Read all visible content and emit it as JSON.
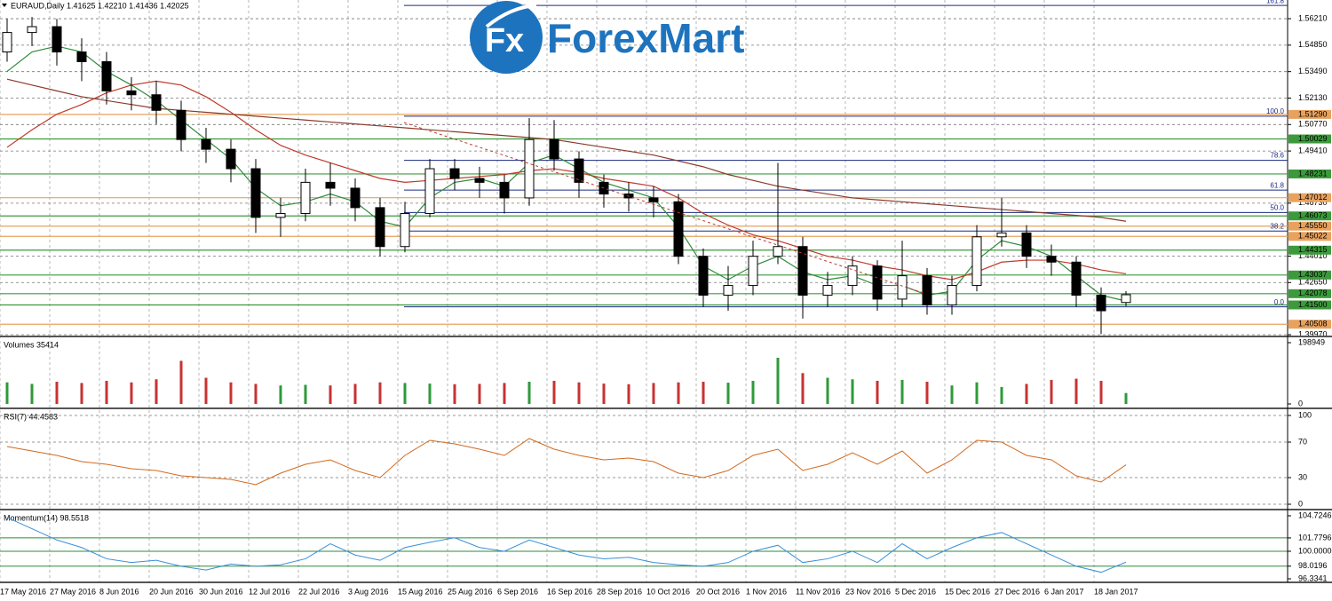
{
  "chart_data": [
    {
      "type": "candlestick",
      "title": "EURAUD,Daily 1.41625 1.42210 1.41436 1.42025",
      "categories": [
        "17 May 2016",
        null,
        "27 May 2016",
        null,
        "8 Jun 2016",
        null,
        "20 Jun 2016",
        null,
        "30 Jun 2016",
        null,
        "12 Jul 2016",
        null,
        "22 Jul 2016",
        null,
        "3 Aug 2016",
        null,
        "15 Aug 2016",
        null,
        "25 Aug 2016",
        null,
        "6 Sep 2016",
        null,
        "16 Sep 2016",
        null,
        "28 Sep 2016",
        null,
        "10 Oct 2016",
        null,
        "20 Oct 2016",
        null,
        "1 Nov 2016",
        null,
        "11 Nov 2016",
        null,
        "23 Nov 2016",
        null,
        "5 Dec 2016",
        null,
        "15 Dec 2016",
        null,
        "27 Dec 2016",
        null,
        "6 Jan 2017",
        null,
        "18 Jan 2017",
        null
      ],
      "open": [
        1.545,
        1.555,
        1.558,
        1.545,
        1.54,
        1.525,
        1.523,
        1.515,
        1.5,
        1.495,
        1.485,
        1.46,
        1.462,
        1.478,
        1.475,
        1.465,
        1.445,
        1.462,
        1.485,
        1.48,
        1.478,
        1.47,
        1.5,
        1.49,
        1.478,
        1.472,
        1.47,
        1.468,
        1.44,
        1.42,
        1.425,
        1.44,
        1.445,
        1.42,
        1.425,
        1.435,
        1.418,
        1.43,
        1.415,
        1.425,
        1.45,
        1.452,
        1.44,
        1.437,
        1.42,
        1.41625
      ],
      "high": [
        1.562,
        1.563,
        1.562,
        1.552,
        1.545,
        1.532,
        1.53,
        1.52,
        1.506,
        1.5,
        1.49,
        1.47,
        1.485,
        1.488,
        1.48,
        1.47,
        1.468,
        1.49,
        1.49,
        1.486,
        1.482,
        1.511,
        1.51,
        1.494,
        1.482,
        1.478,
        1.476,
        1.472,
        1.444,
        1.435,
        1.448,
        1.488,
        1.45,
        1.432,
        1.44,
        1.438,
        1.448,
        1.434,
        1.43,
        1.456,
        1.47,
        1.456,
        1.446,
        1.44,
        1.424,
        1.4221
      ],
      "low": [
        1.54,
        1.548,
        1.538,
        1.53,
        1.518,
        1.515,
        1.508,
        1.494,
        1.488,
        1.478,
        1.452,
        1.45,
        1.458,
        1.466,
        1.458,
        1.44,
        1.442,
        1.46,
        1.474,
        1.47,
        1.462,
        1.466,
        1.484,
        1.47,
        1.465,
        1.463,
        1.46,
        1.436,
        1.414,
        1.412,
        1.42,
        1.436,
        1.408,
        1.414,
        1.42,
        1.412,
        1.414,
        1.41,
        1.41,
        1.422,
        1.445,
        1.434,
        1.43,
        1.414,
        1.4,
        1.41436
      ],
      "close": [
        1.555,
        1.558,
        1.545,
        1.54,
        1.525,
        1.523,
        1.515,
        1.5,
        1.495,
        1.485,
        1.46,
        1.462,
        1.478,
        1.475,
        1.465,
        1.445,
        1.462,
        1.485,
        1.48,
        1.478,
        1.47,
        1.5,
        1.49,
        1.478,
        1.472,
        1.47,
        1.468,
        1.44,
        1.42,
        1.425,
        1.44,
        1.445,
        1.42,
        1.425,
        1.435,
        1.418,
        1.43,
        1.415,
        1.425,
        1.45,
        1.452,
        1.44,
        1.437,
        1.42,
        1.412,
        1.42025
      ],
      "up_color": "#ffffff",
      "down_color": "#000000",
      "lines": [
        {
          "color": "#2e8b3a",
          "values": [
            1.535,
            1.545,
            1.548,
            1.545,
            1.535,
            1.528,
            1.52,
            1.51,
            1.5,
            1.49,
            1.475,
            1.466,
            1.468,
            1.472,
            1.468,
            1.458,
            1.455,
            1.47,
            1.478,
            1.48,
            1.476,
            1.488,
            1.492,
            1.485,
            1.478,
            1.474,
            1.47,
            1.455,
            1.435,
            1.428,
            1.435,
            1.44,
            1.432,
            1.428,
            1.43,
            1.425,
            1.425,
            1.42,
            1.422,
            1.438,
            1.448,
            1.445,
            1.44,
            1.43,
            1.42,
            1.417
          ]
        },
        {
          "color": "#c0392b",
          "values": [
            1.496,
            1.505,
            1.513,
            1.518,
            1.524,
            1.528,
            1.53,
            1.528,
            1.522,
            1.514,
            1.505,
            1.497,
            1.492,
            1.488,
            1.484,
            1.48,
            1.478,
            1.479,
            1.48,
            1.481,
            1.482,
            1.484,
            1.485,
            1.483,
            1.48,
            1.478,
            1.476,
            1.47,
            1.462,
            1.456,
            1.451,
            1.448,
            1.444,
            1.44,
            1.438,
            1.435,
            1.433,
            1.43,
            1.428,
            1.432,
            1.437,
            1.438,
            1.438,
            1.436,
            1.433,
            1.431
          ]
        },
        {
          "color": "#8b3a2a",
          "values": [
            1.531,
            1.528,
            1.525,
            1.522,
            1.52,
            1.518,
            1.516,
            1.515,
            1.514,
            1.513,
            1.512,
            1.511,
            1.51,
            1.509,
            1.508,
            1.507,
            1.506,
            1.505,
            1.504,
            1.503,
            1.502,
            1.501,
            1.5,
            1.498,
            1.496,
            1.494,
            1.492,
            1.489,
            1.486,
            1.482,
            1.479,
            1.476,
            1.474,
            1.472,
            1.47,
            1.469,
            1.468,
            1.467,
            1.466,
            1.465,
            1.464,
            1.463,
            1.462,
            1.461,
            1.46,
            1.458
          ]
        }
      ],
      "ylim": [
        1.3988,
        1.5717
      ],
      "yticks": [
        {
          "value": 1.5621,
          "label": "1.56210"
        },
        {
          "value": 1.5485,
          "label": "1.54850"
        },
        {
          "value": 1.5349,
          "label": "1.53490"
        },
        {
          "value": 1.5213,
          "label": "1.52130"
        },
        {
          "value": 1.5077,
          "label": "1.50770"
        },
        {
          "value": 1.4941,
          "label": "1.49410"
        },
        {
          "value": 1.4673,
          "label": "1.46730"
        },
        {
          "value": 1.4401,
          "label": "1.44010"
        },
        {
          "value": 1.4265,
          "label": "1.42650"
        },
        {
          "value": 1.3997,
          "label": "1.39970"
        }
      ],
      "grid": true,
      "levels": [
        {
          "value": 1.5129,
          "label": "1.51290",
          "color": "#e8a25e"
        },
        {
          "value": 1.50029,
          "label": "1.50029",
          "color": "#3c9a3c"
        },
        {
          "value": 1.48231,
          "label": "1.48231",
          "color": "#3c9a3c"
        },
        {
          "value": 1.47012,
          "label": "1.47012",
          "color": "#e8a25e"
        },
        {
          "value": 1.46073,
          "label": "1.46073",
          "color": "#3c9a3c"
        },
        {
          "value": 1.4555,
          "label": "1.45550",
          "color": "#e8a25e"
        },
        {
          "value": 1.45022,
          "label": "1.45022",
          "color": "#e8a25e"
        },
        {
          "value": 1.44315,
          "label": "1.44315",
          "color": "#3c9a3c"
        },
        {
          "value": 1.43037,
          "label": "1.43037",
          "color": "#3c9a3c"
        },
        {
          "value": 1.42078,
          "label": "1.42078",
          "color": "#3c9a3c"
        },
        {
          "value": 1.415,
          "label": "1.41500",
          "color": "#3c9a3c"
        },
        {
          "value": 1.40508,
          "label": "1.40508",
          "color": "#e8a25e"
        }
      ],
      "fib": {
        "color": "#1a2a80",
        "levels": [
          {
            "label": "161.8",
            "price": 1.5689
          },
          {
            "label": "100.0",
            "price": 1.512
          },
          {
            "label": "78.6",
            "price": 1.4893
          },
          {
            "label": "61.8",
            "price": 1.474
          },
          {
            "label": "50.0",
            "price": 1.4625
          },
          {
            "label": "38.2",
            "price": 1.453
          },
          {
            "label": "0.0",
            "price": 1.414
          }
        ]
      }
    },
    {
      "type": "bar",
      "title": "Volumes 35414",
      "up_color": "#2e9a3a",
      "down_color": "#c83232",
      "values": [
        70000,
        65000,
        72000,
        68000,
        75000,
        70000,
        80000,
        140000,
        85000,
        70000,
        65000,
        60000,
        62000,
        60000,
        65000,
        70000,
        68000,
        66000,
        64000,
        65000,
        68000,
        72000,
        75000,
        70000,
        66000,
        64000,
        68000,
        70000,
        72000,
        69000,
        75000,
        150000,
        100000,
        85000,
        80000,
        75000,
        78000,
        72000,
        60000,
        70000,
        55000,
        65000,
        78000,
        82000,
        75000,
        35414
      ],
      "ylim": [
        0,
        198949
      ],
      "yticks": [
        0,
        198949
      ]
    },
    {
      "type": "line",
      "title": "RSI(7) 44.4583",
      "color": "#d2691e",
      "values": [
        65,
        60,
        55,
        48,
        45,
        40,
        38,
        32,
        30,
        28,
        22,
        35,
        45,
        50,
        38,
        30,
        55,
        72,
        68,
        62,
        55,
        74,
        62,
        55,
        50,
        52,
        48,
        35,
        30,
        38,
        55,
        62,
        38,
        45,
        58,
        45,
        60,
        35,
        50,
        72,
        70,
        55,
        50,
        32,
        25,
        44.4583
      ],
      "ylim": [
        0,
        100
      ],
      "yticks": [
        0,
        30,
        70,
        100
      ]
    },
    {
      "type": "line",
      "title": "Momentum(14) 98.5518",
      "color": "#3a8fd8",
      "values": [
        104.5,
        103,
        101.5,
        100.5,
        99,
        98.5,
        98.8,
        98,
        97.5,
        98.3,
        98,
        98.2,
        99,
        101,
        99.5,
        98.8,
        100.5,
        101.2,
        101.8,
        100.5,
        100,
        101.5,
        100.5,
        99.5,
        99,
        99.2,
        98.5,
        98.2,
        98,
        98.5,
        100,
        100.8,
        98.5,
        99,
        100,
        98.5,
        101,
        99,
        100.5,
        101.8,
        102.5,
        101,
        99.5,
        98,
        97.2,
        98.5518
      ],
      "ylim": [
        96.3341,
        104.7246
      ],
      "yticks": [
        96.3341,
        98.0196,
        {
          "value": 100,
          "label": "100.0000"
        },
        101.7796,
        104.7246
      ]
    }
  ],
  "logo": {
    "icon": "Fx",
    "name": "ForexMart"
  }
}
